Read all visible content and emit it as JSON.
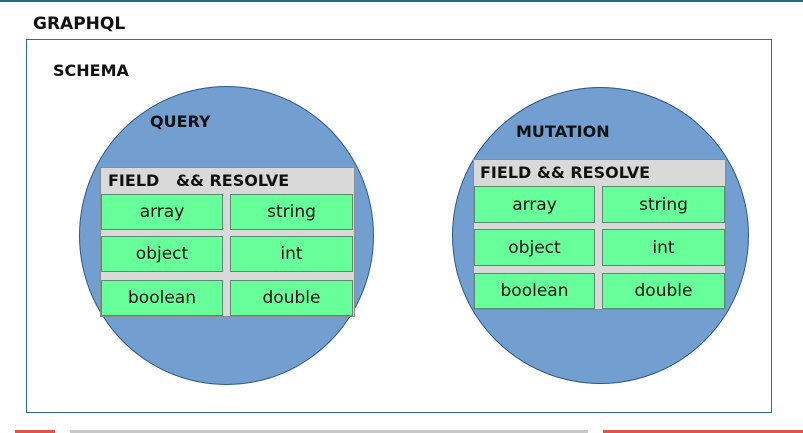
{
  "title": "GRAPHQL",
  "schema": {
    "label": "SCHEMA",
    "query": {
      "title": "QUERY",
      "header": "FIELD   && RESOLVE",
      "cells": [
        "array",
        "string",
        "object",
        "int",
        "boolean",
        "double"
      ]
    },
    "mutation": {
      "title": "MUTATION",
      "header": "FIELD && RESOLVE",
      "cells": [
        "array",
        "string",
        "object",
        "int",
        "boolean",
        "double"
      ]
    }
  },
  "colors": {
    "circle_fill": "#729fcf",
    "cell_fill": "#66ff99",
    "header_fill": "#d9d9d9",
    "border": "#2e6e8e"
  }
}
